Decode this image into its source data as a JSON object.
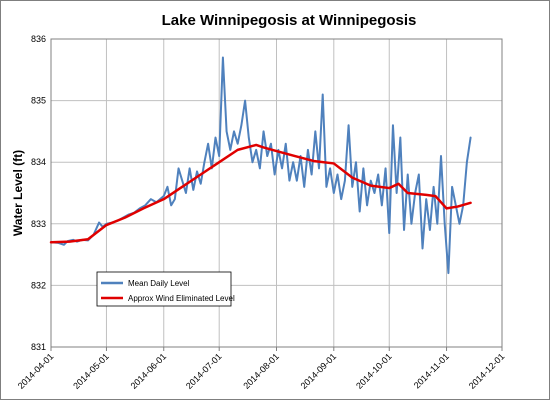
{
  "chart_data": {
    "type": "line",
    "title": "Lake Winnipegosis at Winnipegosis",
    "xlabel": "",
    "ylabel": "Water Level (ft)",
    "xlim": [
      "2014-04-01",
      "2014-12-01"
    ],
    "ylim": [
      831,
      836
    ],
    "x_ticks": [
      "2014-04-01",
      "2014-05-01",
      "2014-06-01",
      "2014-07-01",
      "2014-08-01",
      "2014-09-01",
      "2014-10-01",
      "2014-11-01",
      "2014-12-01"
    ],
    "y_ticks": [
      "831",
      "832",
      "833",
      "834",
      "835",
      "836"
    ],
    "grid": true,
    "legend": "bottom-left",
    "colors": {
      "mean": "#4f81bd",
      "wind": "#e00000",
      "grid": "#c0c0c0"
    },
    "series": [
      {
        "name": "Mean Daily Level",
        "points": [
          [
            "2014-04-01",
            832.7
          ],
          [
            "2014-04-05",
            832.69
          ],
          [
            "2014-04-08",
            832.66
          ],
          [
            "2014-04-10",
            832.72
          ],
          [
            "2014-04-13",
            832.74
          ],
          [
            "2014-04-15",
            832.71
          ],
          [
            "2014-04-18",
            832.74
          ],
          [
            "2014-04-21",
            832.73
          ],
          [
            "2014-04-24",
            832.82
          ],
          [
            "2014-04-27",
            833.02
          ],
          [
            "2014-04-29",
            832.95
          ],
          [
            "2014-05-01",
            833.0
          ],
          [
            "2014-05-04",
            833.02
          ],
          [
            "2014-05-07",
            833.05
          ],
          [
            "2014-05-10",
            833.1
          ],
          [
            "2014-05-13",
            833.15
          ],
          [
            "2014-05-16",
            833.18
          ],
          [
            "2014-05-19",
            833.25
          ],
          [
            "2014-05-22",
            833.3
          ],
          [
            "2014-05-25",
            833.4
          ],
          [
            "2014-05-28",
            833.35
          ],
          [
            "2014-06-01",
            833.45
          ],
          [
            "2014-06-03",
            833.6
          ],
          [
            "2014-06-05",
            833.3
          ],
          [
            "2014-06-07",
            833.4
          ],
          [
            "2014-06-09",
            833.9
          ],
          [
            "2014-06-11",
            833.7
          ],
          [
            "2014-06-13",
            833.5
          ],
          [
            "2014-06-15",
            833.9
          ],
          [
            "2014-06-17",
            833.55
          ],
          [
            "2014-06-19",
            833.85
          ],
          [
            "2014-06-21",
            833.65
          ],
          [
            "2014-06-23",
            834.0
          ],
          [
            "2014-06-25",
            834.3
          ],
          [
            "2014-06-27",
            833.9
          ],
          [
            "2014-06-29",
            834.4
          ],
          [
            "2014-07-01",
            834.1
          ],
          [
            "2014-07-03",
            835.7
          ],
          [
            "2014-07-05",
            834.5
          ],
          [
            "2014-07-07",
            834.2
          ],
          [
            "2014-07-09",
            834.5
          ],
          [
            "2014-07-11",
            834.3
          ],
          [
            "2014-07-13",
            834.6
          ],
          [
            "2014-07-15",
            835.0
          ],
          [
            "2014-07-17",
            834.4
          ],
          [
            "2014-07-19",
            834.0
          ],
          [
            "2014-07-21",
            834.2
          ],
          [
            "2014-07-23",
            833.9
          ],
          [
            "2014-07-25",
            834.5
          ],
          [
            "2014-07-27",
            834.1
          ],
          [
            "2014-07-29",
            834.3
          ],
          [
            "2014-07-31",
            833.8
          ],
          [
            "2014-08-02",
            834.2
          ],
          [
            "2014-08-04",
            833.9
          ],
          [
            "2014-08-06",
            834.3
          ],
          [
            "2014-08-08",
            833.7
          ],
          [
            "2014-08-10",
            834.0
          ],
          [
            "2014-08-12",
            833.7
          ],
          [
            "2014-08-14",
            834.1
          ],
          [
            "2014-08-16",
            833.6
          ],
          [
            "2014-08-18",
            834.2
          ],
          [
            "2014-08-20",
            833.8
          ],
          [
            "2014-08-22",
            834.5
          ],
          [
            "2014-08-24",
            833.9
          ],
          [
            "2014-08-26",
            835.1
          ],
          [
            "2014-08-28",
            833.6
          ],
          [
            "2014-08-30",
            833.9
          ],
          [
            "2014-09-01",
            833.5
          ],
          [
            "2014-09-03",
            833.8
          ],
          [
            "2014-09-05",
            833.4
          ],
          [
            "2014-09-07",
            833.7
          ],
          [
            "2014-09-09",
            834.6
          ],
          [
            "2014-09-11",
            833.6
          ],
          [
            "2014-09-13",
            834.0
          ],
          [
            "2014-09-15",
            833.2
          ],
          [
            "2014-09-17",
            833.9
          ],
          [
            "2014-09-19",
            833.3
          ],
          [
            "2014-09-21",
            833.7
          ],
          [
            "2014-09-23",
            833.5
          ],
          [
            "2014-09-25",
            833.8
          ],
          [
            "2014-09-27",
            833.3
          ],
          [
            "2014-09-29",
            833.9
          ],
          [
            "2014-10-01",
            832.85
          ],
          [
            "2014-10-03",
            834.6
          ],
          [
            "2014-10-05",
            833.5
          ],
          [
            "2014-10-07",
            834.4
          ],
          [
            "2014-10-09",
            832.9
          ],
          [
            "2014-10-11",
            833.8
          ],
          [
            "2014-10-13",
            833.0
          ],
          [
            "2014-10-15",
            833.5
          ],
          [
            "2014-10-17",
            833.8
          ],
          [
            "2014-10-19",
            832.6
          ],
          [
            "2014-10-21",
            833.4
          ],
          [
            "2014-10-23",
            832.9
          ],
          [
            "2014-10-25",
            833.6
          ],
          [
            "2014-10-27",
            833.0
          ],
          [
            "2014-10-29",
            834.1
          ],
          [
            "2014-10-31",
            833.0
          ],
          [
            "2014-11-02",
            832.2
          ],
          [
            "2014-11-04",
            833.6
          ],
          [
            "2014-11-06",
            833.3
          ],
          [
            "2014-11-08",
            833.0
          ],
          [
            "2014-11-10",
            833.3
          ],
          [
            "2014-11-12",
            834.0
          ],
          [
            "2014-11-14",
            834.4
          ]
        ]
      },
      {
        "name": "Approx Wind Eliminated Level",
        "points": [
          [
            "2014-04-01",
            832.7
          ],
          [
            "2014-04-11",
            832.71
          ],
          [
            "2014-04-21",
            832.75
          ],
          [
            "2014-05-01",
            832.98
          ],
          [
            "2014-05-11",
            833.1
          ],
          [
            "2014-05-21",
            833.25
          ],
          [
            "2014-06-01",
            833.4
          ],
          [
            "2014-06-11",
            833.6
          ],
          [
            "2014-06-21",
            833.8
          ],
          [
            "2014-07-01",
            834.0
          ],
          [
            "2014-07-11",
            834.2
          ],
          [
            "2014-07-21",
            834.28
          ],
          [
            "2014-07-25",
            834.24
          ],
          [
            "2014-08-01",
            834.18
          ],
          [
            "2014-08-11",
            834.1
          ],
          [
            "2014-08-21",
            834.02
          ],
          [
            "2014-09-01",
            833.98
          ],
          [
            "2014-09-11",
            833.75
          ],
          [
            "2014-09-21",
            833.62
          ],
          [
            "2014-10-01",
            833.58
          ],
          [
            "2014-10-06",
            833.65
          ],
          [
            "2014-10-11",
            833.5
          ],
          [
            "2014-10-21",
            833.47
          ],
          [
            "2014-10-26",
            833.45
          ],
          [
            "2014-11-01",
            833.25
          ],
          [
            "2014-11-07",
            833.28
          ],
          [
            "2014-11-14",
            833.34
          ]
        ]
      }
    ]
  }
}
